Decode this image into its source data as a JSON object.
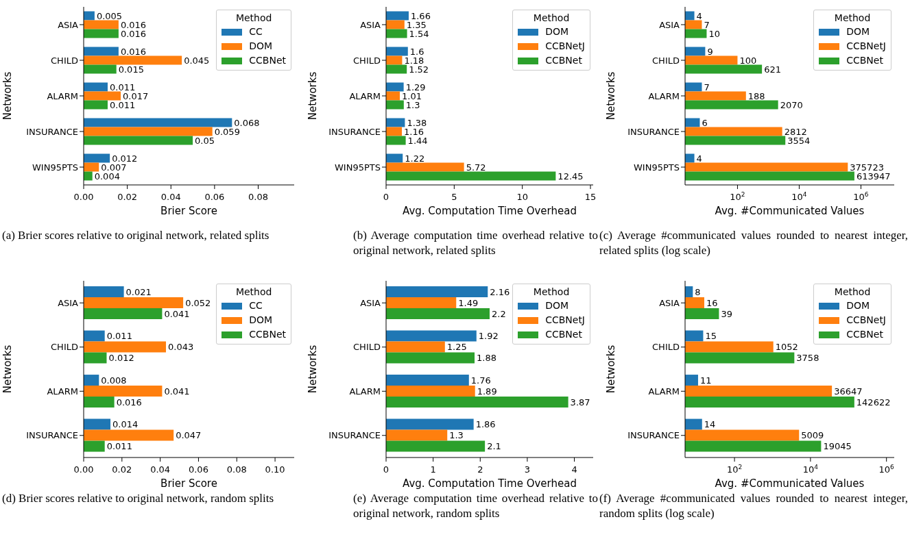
{
  "chart_data": [
    {
      "type": "bar",
      "orientation": "horizontal",
      "xlabel": "Brier Score",
      "ylabel": "Networks",
      "categories": [
        "ASIA",
        "CHILD",
        "ALARM",
        "INSURANCE",
        "WIN95PTS"
      ],
      "series": [
        {
          "name": "CC",
          "color": "#1f77b4",
          "values": [
            0.005,
            0.016,
            0.011,
            0.068,
            0.012
          ]
        },
        {
          "name": "DOM",
          "color": "#ff7f0e",
          "values": [
            0.016,
            0.045,
            0.017,
            0.059,
            0.007
          ]
        },
        {
          "name": "CCBNet",
          "color": "#2ca02c",
          "values": [
            0.016,
            0.015,
            0.011,
            0.05,
            0.004
          ]
        }
      ],
      "xlim": [
        0,
        0.0965
      ],
      "xticks": [
        {
          "value": 0,
          "label": "0.00"
        },
        {
          "value": 0.02,
          "label": "0.02"
        },
        {
          "value": 0.04,
          "label": "0.04"
        },
        {
          "value": 0.06,
          "label": "0.06"
        },
        {
          "value": 0.08,
          "label": "0.08"
        }
      ],
      "legend": "top right",
      "legend_title": "Method",
      "data_labels": true,
      "grid": false,
      "annotations": [
        "(a) Brier scores relative to original network, related splits"
      ]
    },
    {
      "type": "bar",
      "orientation": "horizontal",
      "xlabel": "Avg. Computation Time Overhead",
      "ylabel": "Networks",
      "categories": [
        "ASIA",
        "CHILD",
        "ALARM",
        "INSURANCE",
        "WIN95PTS"
      ],
      "series": [
        {
          "name": "DOM",
          "color": "#1f77b4",
          "values": [
            1.66,
            1.6,
            1.29,
            1.38,
            1.22
          ]
        },
        {
          "name": "CCBNetJ",
          "color": "#ff7f0e",
          "values": [
            1.35,
            1.18,
            1.01,
            1.16,
            5.72
          ]
        },
        {
          "name": "CCBNet",
          "color": "#2ca02c",
          "values": [
            1.54,
            1.52,
            1.3,
            1.44,
            12.45
          ]
        }
      ],
      "xlim": [
        0,
        15.2
      ],
      "xticks": [
        0,
        5,
        10,
        15
      ],
      "legend": "top right",
      "legend_title": "Method",
      "data_labels": true,
      "grid": false,
      "annotations": [
        "(b) Average computation time overhead relative to original network, related splits"
      ]
    },
    {
      "type": "bar",
      "orientation": "horizontal",
      "xlabel": "Avg. #Communicated Values",
      "ylabel": "Networks",
      "categories": [
        "ASIA",
        "CHILD",
        "ALARM",
        "INSURANCE",
        "WIN95PTS"
      ],
      "series": [
        {
          "name": "DOM",
          "color": "#1f77b4",
          "values": [
            4,
            9,
            7,
            6,
            4
          ]
        },
        {
          "name": "CCBNetJ",
          "color": "#ff7f0e",
          "values": [
            7,
            100,
            188,
            2812,
            375723
          ]
        },
        {
          "name": "CCBNet",
          "color": "#2ca02c",
          "values": [
            10,
            621,
            2070,
            3554,
            613947
          ]
        }
      ],
      "log": "x",
      "xlim": [
        2,
        12000000
      ],
      "xticks": [
        {
          "value": 100,
          "label": "10$^{2}$"
        },
        {
          "value": 10000,
          "label": "10$^{4}$"
        },
        {
          "value": 1000000,
          "label": "10$^{6}$"
        }
      ],
      "legend": "top right",
      "legend_title": "Method",
      "data_labels": true,
      "grid": false,
      "annotations": [
        "(c) Average #communicated values rounded to nearest integer, related splits (log scale)"
      ]
    },
    {
      "type": "bar",
      "orientation": "horizontal",
      "xlabel": "Brier Score",
      "ylabel": "Networks",
      "categories": [
        "ASIA",
        "CHILD",
        "ALARM",
        "INSURANCE"
      ],
      "series": [
        {
          "name": "CC",
          "color": "#1f77b4",
          "values": [
            0.021,
            0.011,
            0.008,
            0.014
          ]
        },
        {
          "name": "DOM",
          "color": "#ff7f0e",
          "values": [
            0.052,
            0.043,
            0.041,
            0.047
          ]
        },
        {
          "name": "CCBNet",
          "color": "#2ca02c",
          "values": [
            0.041,
            0.012,
            0.016,
            0.011
          ]
        }
      ],
      "xlim": [
        0,
        0.11
      ],
      "xticks": [
        {
          "value": 0,
          "label": "0.00"
        },
        {
          "value": 0.02,
          "label": "0.02"
        },
        {
          "value": 0.04,
          "label": "0.04"
        },
        {
          "value": 0.06,
          "label": "0.06"
        },
        {
          "value": 0.08,
          "label": "0.08"
        },
        {
          "value": 0.1,
          "label": "0.10"
        }
      ],
      "legend": "top right",
      "legend_title": "Method",
      "data_labels": true,
      "grid": false,
      "annotations": [
        "(d) Brier scores relative to original network, random splits"
      ]
    },
    {
      "type": "bar",
      "orientation": "horizontal",
      "xlabel": "Avg. Computation Time Overhead",
      "ylabel": "Networks",
      "categories": [
        "ASIA",
        "CHILD",
        "ALARM",
        "INSURANCE"
      ],
      "series": [
        {
          "name": "DOM",
          "color": "#1f77b4",
          "values": [
            2.16,
            1.92,
            1.76,
            1.86
          ]
        },
        {
          "name": "CCBNetJ",
          "color": "#ff7f0e",
          "values": [
            1.49,
            1.25,
            1.89,
            1.3
          ]
        },
        {
          "name": "CCBNet",
          "color": "#2ca02c",
          "values": [
            2.2,
            1.88,
            3.87,
            2.1
          ]
        }
      ],
      "xlim": [
        0,
        4.4
      ],
      "xticks": [
        0,
        1,
        2,
        3,
        4
      ],
      "legend": "top right",
      "legend_title": "Method",
      "data_labels": true,
      "grid": false,
      "annotations": [
        "(e) Average computation time overhead relative to original network, random splits"
      ]
    },
    {
      "type": "bar",
      "orientation": "horizontal",
      "xlabel": "Avg. #Communicated Values",
      "ylabel": "Networks",
      "categories": [
        "ASIA",
        "CHILD",
        "ALARM",
        "INSURANCE"
      ],
      "series": [
        {
          "name": "DOM",
          "color": "#1f77b4",
          "values": [
            8,
            15,
            11,
            14
          ]
        },
        {
          "name": "CCBNetJ",
          "color": "#ff7f0e",
          "values": [
            16,
            1052,
            36647,
            5009
          ]
        },
        {
          "name": "CCBNet",
          "color": "#2ca02c",
          "values": [
            39,
            3758,
            142622,
            19045
          ]
        }
      ],
      "log": "x",
      "xlim": [
        5,
        1600000
      ],
      "xticks": [
        {
          "value": 100,
          "label": "10$^{2}$"
        },
        {
          "value": 10000,
          "label": "10$^{4}$"
        },
        {
          "value": 1000000,
          "label": "10$^{6}$"
        }
      ],
      "legend": "top right",
      "legend_title": "Method",
      "data_labels": true,
      "grid": false,
      "annotations": [
        "(f) Average #communicated values rounded to nearest integer, random splits (log scale)"
      ]
    }
  ]
}
